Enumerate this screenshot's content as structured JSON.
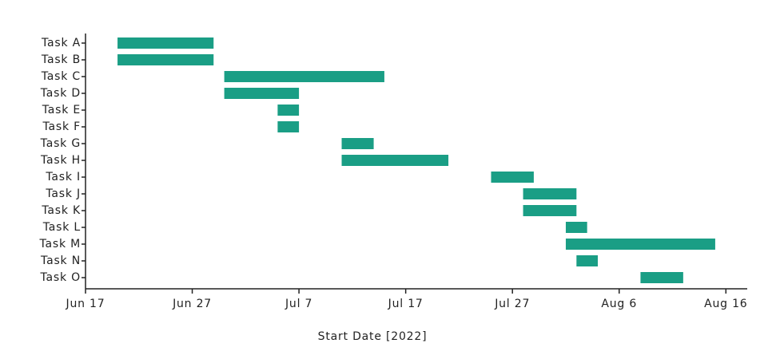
{
  "chart_data": {
    "type": "gantt",
    "x_label": "Start Date [2022]",
    "categories": [
      "Task A",
      "Task B",
      "Task C",
      "Task D",
      "Task E",
      "Task F",
      "Task G",
      "Task H",
      "Task I",
      "Task J",
      "Task K",
      "Task L",
      "Task M",
      "Task N",
      "Task O"
    ],
    "start": [
      "2022-06-20",
      "2022-06-20",
      "2022-06-30",
      "2022-06-30",
      "2022-07-05",
      "2022-07-05",
      "2022-07-11",
      "2022-07-11",
      "2022-07-25",
      "2022-07-28",
      "2022-07-28",
      "2022-08-01",
      "2022-08-01",
      "2022-08-02",
      "2022-08-08"
    ],
    "end": [
      "2022-06-29",
      "2022-06-29",
      "2022-07-15",
      "2022-07-07",
      "2022-07-07",
      "2022-07-07",
      "2022-07-14",
      "2022-07-21",
      "2022-07-29",
      "2022-08-02",
      "2022-08-02",
      "2022-08-03",
      "2022-08-15",
      "2022-08-04",
      "2022-08-12"
    ],
    "color": "#1a9e85",
    "xlim": [
      "2022-06-17",
      "2022-08-18"
    ],
    "xticks": [
      {
        "value": "2022-06-17",
        "label": "Jun 17"
      },
      {
        "value": "2022-06-27",
        "label": "Jun 27"
      },
      {
        "value": "2022-07-07",
        "label": "Jul 7"
      },
      {
        "value": "2022-07-17",
        "label": "Jul 17"
      },
      {
        "value": "2022-07-27",
        "label": "Jul 27"
      },
      {
        "value": "2022-08-06",
        "label": "Aug 6"
      },
      {
        "value": "2022-08-16",
        "label": "Aug 16"
      }
    ]
  }
}
